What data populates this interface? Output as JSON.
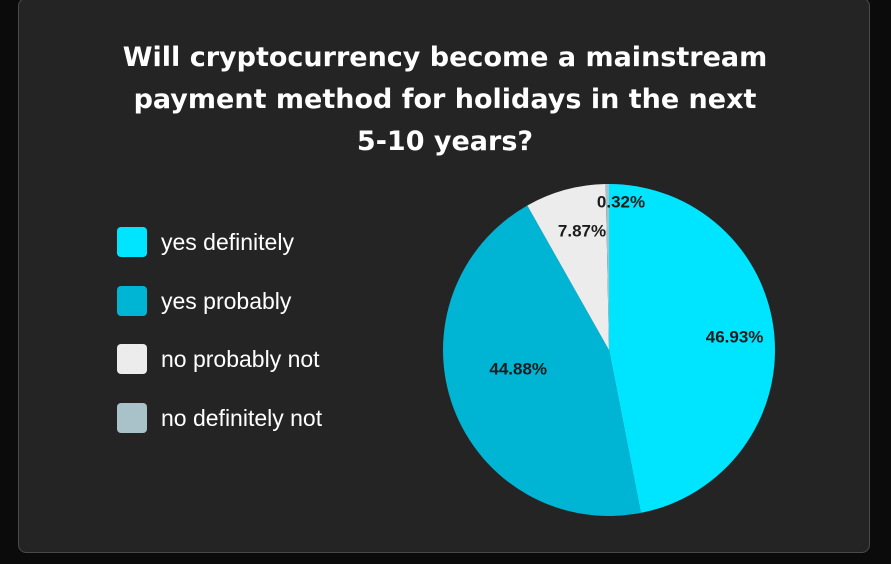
{
  "chart_data": {
    "type": "pie",
    "title_lines": [
      "Will cryptocurrency become a mainstream",
      "payment method for holidays in the next",
      "5-10 years?"
    ],
    "categories": [
      "yes definitely",
      "yes probably",
      "no probably not",
      "no definitely not"
    ],
    "values": [
      46.93,
      44.88,
      7.87,
      0.32
    ],
    "labels": [
      "46.93%",
      "44.88%",
      "7.87%",
      "0.32%"
    ],
    "colors": [
      "#00e5ff",
      "#00b4d4",
      "#ececec",
      "#a9c1c9"
    ],
    "start_angle": "12 o'clock",
    "direction": "clockwise",
    "legend_position": "left"
  }
}
